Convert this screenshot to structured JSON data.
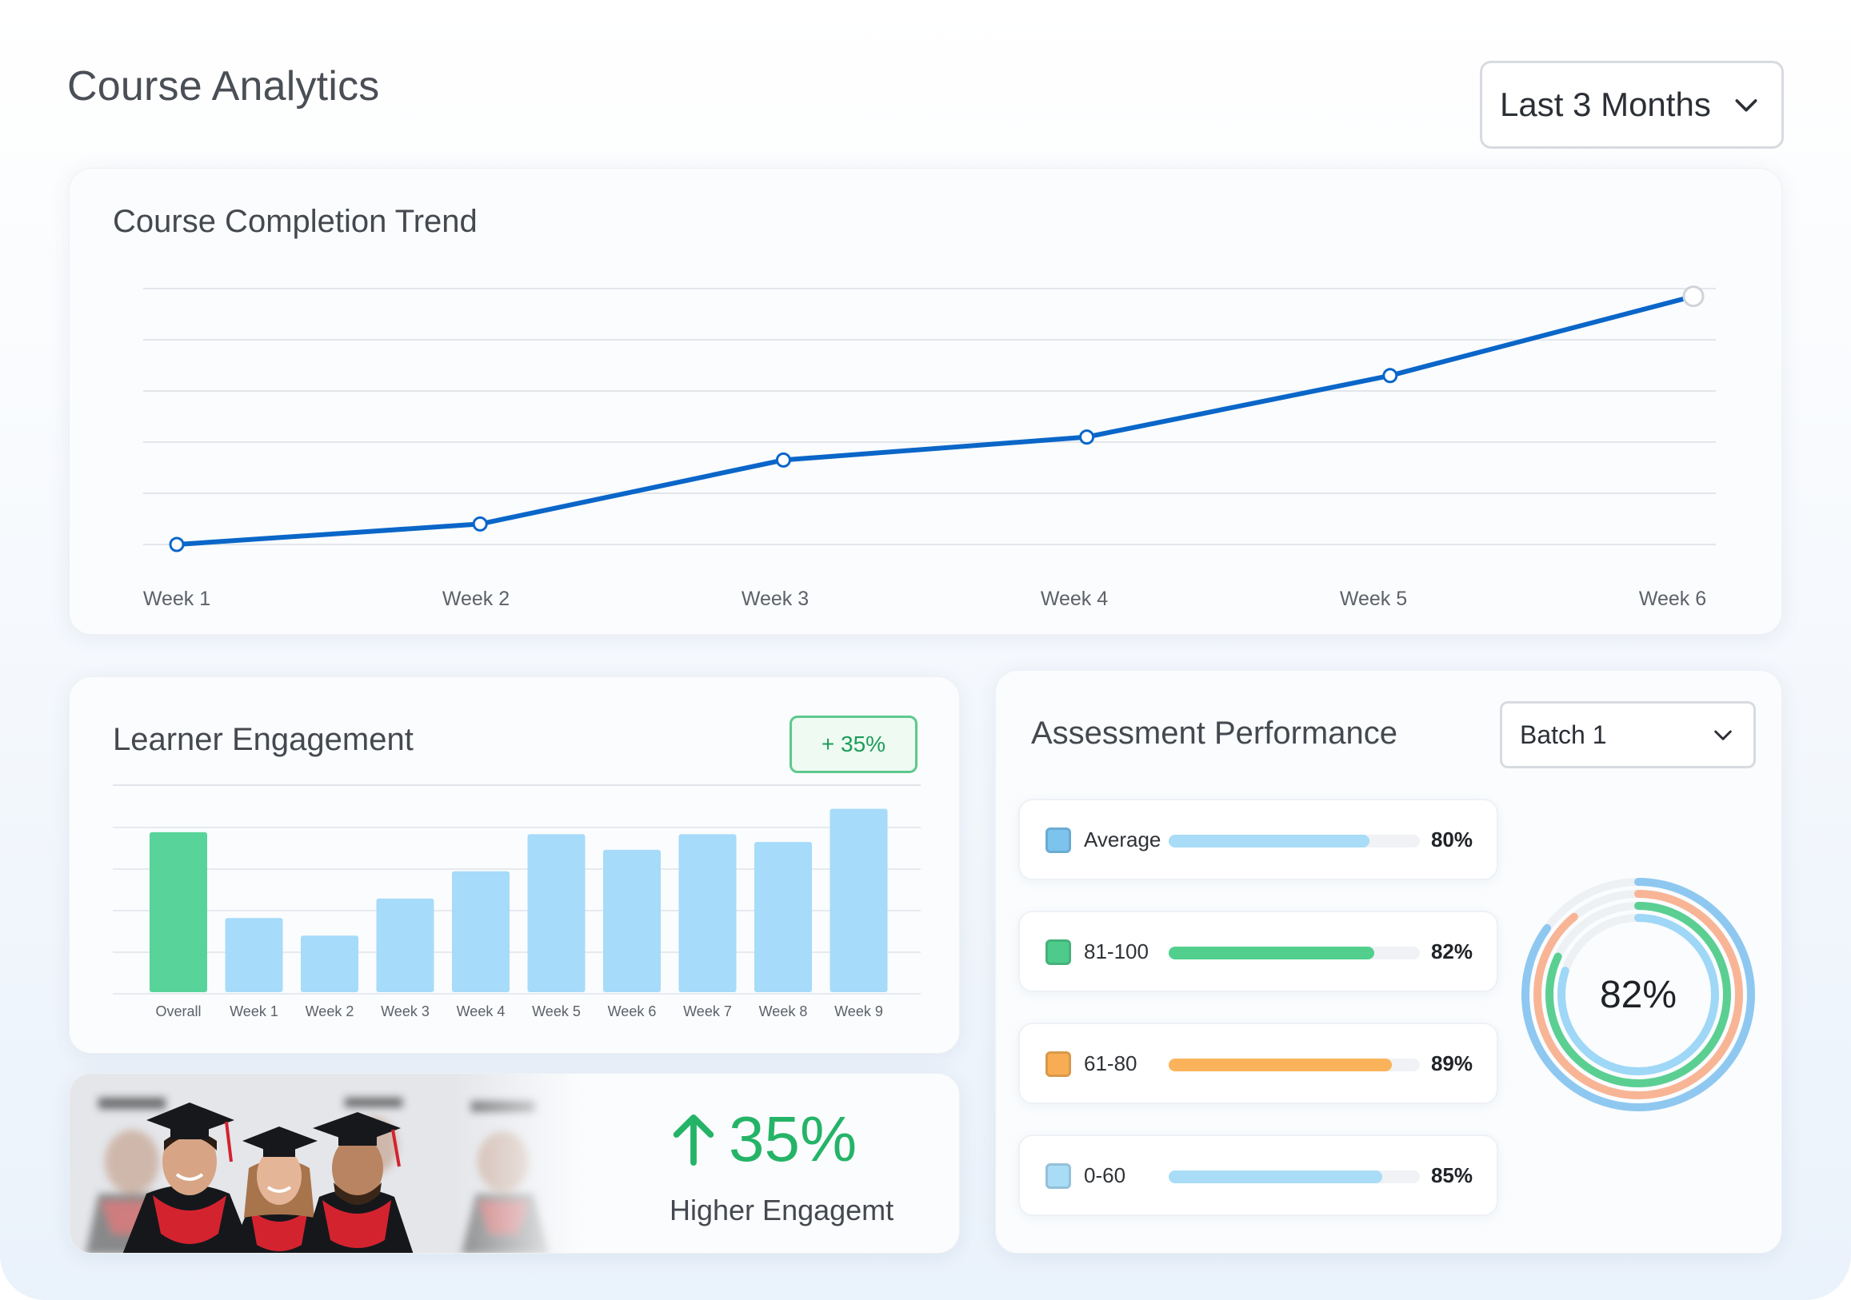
{
  "header": {
    "title": "Course Analytics",
    "range_select": {
      "value": "Last 3 Months"
    }
  },
  "trend": {
    "title": "Course Completion Trend"
  },
  "engagement": {
    "title": "Learner Engagement",
    "badge": "+ 35%"
  },
  "promo": {
    "stat": "35%",
    "caption": "Higher Engagemt"
  },
  "assessment": {
    "title": "Assessment Performance",
    "batch_select": {
      "value": "Batch 1"
    },
    "rows": [
      {
        "label": "Average",
        "pct_label": "80%",
        "pct": 80,
        "color": "#7cc3ee",
        "bar": "#a9dcf6"
      },
      {
        "label": "81-100",
        "pct_label": "82%",
        "pct": 82,
        "color": "#4ecb8b",
        "bar": "#52cf8d"
      },
      {
        "label": "61-80",
        "pct_label": "89%",
        "pct": 89,
        "color": "#f8ad55",
        "bar": "#fab35a"
      },
      {
        "label": "0-60",
        "pct_label": "85%",
        "pct": 85,
        "color": "#a9dcf6",
        "bar": "#a9dcf6"
      }
    ],
    "donut_label": "82%"
  },
  "chart_data": [
    {
      "type": "line",
      "title": "Course Completion Trend",
      "x": [
        "Week 1",
        "Week 2",
        "Week 3",
        "Week 4",
        "Week 5",
        "Week 6"
      ],
      "y": [
        0,
        8,
        33,
        42,
        66,
        97
      ],
      "ylim": [
        0,
        100
      ],
      "grid": true,
      "line_color": "#0a66c8"
    },
    {
      "type": "bar",
      "title": "Learner Engagement",
      "categories": [
        "Overall",
        "Week 1",
        "Week 2",
        "Week 3",
        "Week 4",
        "Week 5",
        "Week 6",
        "Week 7",
        "Week 8",
        "Week 9"
      ],
      "values": [
        82,
        38,
        29,
        48,
        62,
        81,
        73,
        81,
        77,
        94
      ],
      "ylim": [
        0,
        100
      ],
      "colors": {
        "highlight": "#58d49a",
        "default": "#a6dbfa"
      }
    },
    {
      "type": "pie",
      "title": "Assessment Performance",
      "series": [
        {
          "name": "Average",
          "values": [
            80
          ]
        },
        {
          "name": "81-100",
          "values": [
            82
          ]
        },
        {
          "name": "61-80",
          "values": [
            89
          ]
        },
        {
          "name": "0-60",
          "values": [
            85
          ]
        }
      ]
    }
  ]
}
